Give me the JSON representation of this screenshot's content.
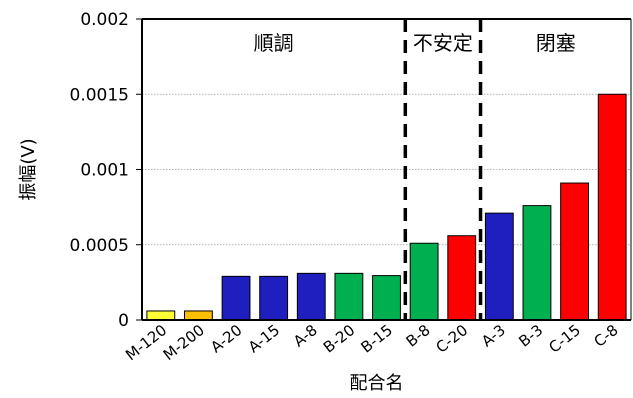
{
  "chart_data": {
    "type": "bar",
    "title": "",
    "xlabel": "配合名",
    "ylabel": "振幅(V)",
    "ylim": [
      0,
      0.002
    ],
    "yticks": [
      "0",
      "0.0005",
      "0.001",
      "0.0015",
      "0.002"
    ],
    "grid": true,
    "categories": [
      "M-120",
      "M-200",
      "A-20",
      "A-15",
      "A-8",
      "B-20",
      "B-15",
      "B-8",
      "C-20",
      "A-3",
      "B-3",
      "C-15",
      "C-8"
    ],
    "values": [
      6e-05,
      6e-05,
      0.00029,
      0.00029,
      0.00031,
      0.00031,
      0.000295,
      0.00051,
      0.00056,
      0.00071,
      0.00076,
      0.00091,
      0.0015
    ],
    "bar_colors": [
      "#ffff33",
      "#ffbf00",
      "#1f1fbf",
      "#1f1fbf",
      "#1f1fbf",
      "#00b050",
      "#00b050",
      "#00b050",
      "#ff0000",
      "#1f1fbf",
      "#00b050",
      "#ff0000",
      "#ff0000"
    ],
    "regions": [
      {
        "label": "順調",
        "from_index": 0,
        "to_index": 6
      },
      {
        "label": "不安定",
        "from_index": 7,
        "to_index": 8
      },
      {
        "label": "閉塞",
        "from_index": 9,
        "to_index": 12
      }
    ]
  }
}
